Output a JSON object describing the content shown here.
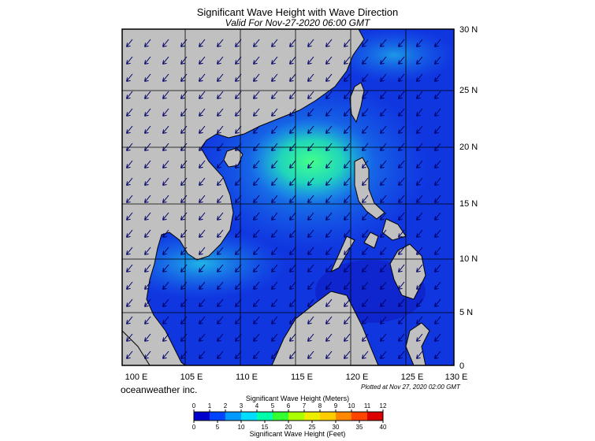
{
  "title": "Significant Wave Height with Wave Direction",
  "subtitle": "Valid For Nov-27-2020 06:00 GMT",
  "lon_labels": [
    "100 E",
    "105 E",
    "110 E",
    "115 E",
    "120 E",
    "125 E",
    "130 E"
  ],
  "lat_labels": [
    "30 N",
    "25 N",
    "20 N",
    "15 N",
    "10 N",
    "5 N",
    "0"
  ],
  "brand": "oceanweather inc.",
  "plotted": "Plotted at Nov 27, 2020 02:00 GMT",
  "colorbar": {
    "meters_title": "Significant Wave Height (Meters)",
    "feet_title": "Significant Wave Height (Feet)",
    "meters_ticks": [
      "0",
      "1",
      "2",
      "3",
      "4",
      "5",
      "6",
      "7",
      "8",
      "9",
      "10",
      "11",
      "12"
    ],
    "feet_ticks": [
      "0",
      "5",
      "10",
      "15",
      "20",
      "25",
      "30",
      "35",
      "40"
    ],
    "colors": [
      "#0000cc",
      "#0044ff",
      "#0099ff",
      "#00ddff",
      "#00ffaa",
      "#33ff33",
      "#aaff00",
      "#eeee00",
      "#ffcc00",
      "#ff8800",
      "#ff4400",
      "#dd0000"
    ]
  },
  "colors": {
    "land": "#c0c0c0",
    "sea_deep": "#1030e0",
    "sea_mid": "#1e78f0",
    "sea_high": "#2ee0a0",
    "arrow": "#000066"
  }
}
